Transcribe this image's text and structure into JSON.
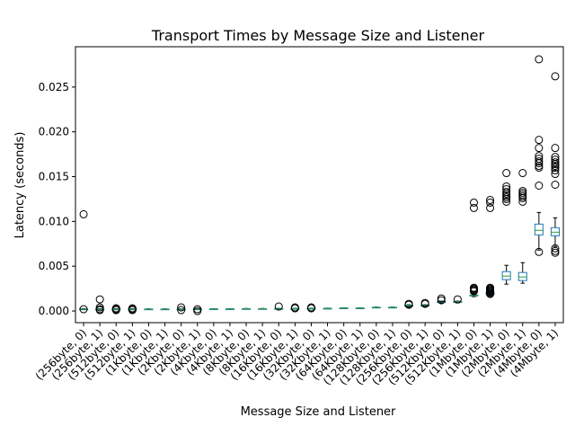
{
  "chart_data": {
    "type": "box",
    "title": "Transport Times by Message Size and Listener",
    "xlabel": "Message Size and Listener",
    "ylabel": "Latency (seconds)",
    "ylim": [
      -0.0013,
      0.0295
    ],
    "yticks": [
      0.0,
      0.005,
      0.01,
      0.015,
      0.02,
      0.025
    ],
    "ytick_labels": [
      "0.000",
      "0.005",
      "0.010",
      "0.015",
      "0.020",
      "0.025"
    ],
    "grid": false,
    "legend": "none",
    "colors": {
      "box": "#1f77b4",
      "median": "#2ca02c",
      "whisker": "#000000",
      "flier": "#000000"
    },
    "categories": [
      "(256byte, 0)",
      "(256byte, 1)",
      "(512byte, 0)",
      "(512byte, 1)",
      "(1Kbyte, 0)",
      "(1Kbyte, 1)",
      "(2Kbyte, 0)",
      "(2Kbyte, 1)",
      "(4Kbyte, 0)",
      "(4Kbyte, 1)",
      "(8Kbyte, 0)",
      "(8Kbyte, 1)",
      "(16Kbyte, 0)",
      "(16Kbyte, 1)",
      "(32Kbyte, 0)",
      "(32Kbyte, 1)",
      "(64Kbyte, 0)",
      "(64Kbyte, 1)",
      "(128Kbyte, 0)",
      "(128Kbyte, 1)",
      "(256Kbyte, 0)",
      "(256Kbyte, 1)",
      "(512Kbyte, 0)",
      "(512Kbyte, 1)",
      "(1Mbyte, 0)",
      "(1Mbyte, 1)",
      "(2Mbyte, 0)",
      "(2Mbyte, 1)",
      "(4Mbyte, 0)",
      "(4Mbyte, 1)"
    ],
    "boxes": [
      {
        "whislo": 0.00015,
        "q1": 0.00018,
        "med": 0.0002,
        "q3": 0.00022,
        "whishi": 0.00026,
        "fliers": [
          0.0108,
          0.0002
        ]
      },
      {
        "whislo": 0.00015,
        "q1": 0.00018,
        "med": 0.0002,
        "q3": 0.00022,
        "whishi": 0.00026,
        "fliers": [
          0.0013,
          0.0004,
          0.0002,
          0.0001
        ]
      },
      {
        "whislo": 0.00015,
        "q1": 0.00018,
        "med": 0.0002,
        "q3": 0.00022,
        "whishi": 0.00026,
        "fliers": [
          0.0003,
          0.0001,
          0.0002
        ]
      },
      {
        "whislo": 0.00015,
        "q1": 0.00018,
        "med": 0.0002,
        "q3": 0.00022,
        "whishi": 0.00026,
        "fliers": [
          0.0003,
          0.0002,
          0.0001
        ]
      },
      {
        "whislo": 0.00018,
        "q1": 0.0002,
        "med": 0.00021,
        "q3": 0.00022,
        "whishi": 0.00024,
        "fliers": []
      },
      {
        "whislo": 0.00018,
        "q1": 0.0002,
        "med": 0.00021,
        "q3": 0.00022,
        "whishi": 0.00024,
        "fliers": []
      },
      {
        "whislo": 0.00018,
        "q1": 0.0002,
        "med": 0.00021,
        "q3": 0.00022,
        "whishi": 0.00024,
        "fliers": [
          0.0004,
          0.0001
        ]
      },
      {
        "whislo": 0.00016,
        "q1": 0.0002,
        "med": 0.00021,
        "q3": 0.00022,
        "whishi": 0.00024,
        "fliers": [
          0.0002,
          0.0
        ]
      },
      {
        "whislo": 0.0002,
        "q1": 0.00022,
        "med": 0.00023,
        "q3": 0.00024,
        "whishi": 0.00026,
        "fliers": []
      },
      {
        "whislo": 0.0002,
        "q1": 0.00022,
        "med": 0.00023,
        "q3": 0.00024,
        "whishi": 0.00026,
        "fliers": []
      },
      {
        "whislo": 0.00022,
        "q1": 0.00024,
        "med": 0.00025,
        "q3": 0.00026,
        "whishi": 0.00028,
        "fliers": []
      },
      {
        "whislo": 0.00022,
        "q1": 0.00024,
        "med": 0.00025,
        "q3": 0.00026,
        "whishi": 0.00028,
        "fliers": []
      },
      {
        "whislo": 0.00024,
        "q1": 0.00026,
        "med": 0.00027,
        "q3": 0.00028,
        "whishi": 0.0003,
        "fliers": [
          0.0005
        ]
      },
      {
        "whislo": 0.00024,
        "q1": 0.00026,
        "med": 0.00027,
        "q3": 0.00028,
        "whishi": 0.0003,
        "fliers": [
          0.0004,
          0.0003
        ]
      },
      {
        "whislo": 0.00026,
        "q1": 0.00028,
        "med": 0.00029,
        "q3": 0.0003,
        "whishi": 0.00032,
        "fliers": [
          0.0004,
          0.0003
        ]
      },
      {
        "whislo": 0.00026,
        "q1": 0.00028,
        "med": 0.00029,
        "q3": 0.0003,
        "whishi": 0.00032,
        "fliers": []
      },
      {
        "whislo": 0.0003,
        "q1": 0.00032,
        "med": 0.00033,
        "q3": 0.00034,
        "whishi": 0.00036,
        "fliers": []
      },
      {
        "whislo": 0.0003,
        "q1": 0.00032,
        "med": 0.00033,
        "q3": 0.00034,
        "whishi": 0.00036,
        "fliers": []
      },
      {
        "whislo": 0.00036,
        "q1": 0.00038,
        "med": 0.0004,
        "q3": 0.00042,
        "whishi": 0.00044,
        "fliers": []
      },
      {
        "whislo": 0.00036,
        "q1": 0.00038,
        "med": 0.0004,
        "q3": 0.00042,
        "whishi": 0.00044,
        "fliers": []
      },
      {
        "whislo": 0.0005,
        "q1": 0.00056,
        "med": 0.0006,
        "q3": 0.00064,
        "whishi": 0.0007,
        "fliers": [
          0.0008,
          0.0007
        ]
      },
      {
        "whislo": 0.0005,
        "q1": 0.00056,
        "med": 0.0006,
        "q3": 0.00064,
        "whishi": 0.0007,
        "fliers": [
          0.0009,
          0.0008
        ]
      },
      {
        "whislo": 0.0009,
        "q1": 0.00096,
        "med": 0.001,
        "q3": 0.00104,
        "whishi": 0.0011,
        "fliers": [
          0.0014,
          0.0012
        ]
      },
      {
        "whislo": 0.0009,
        "q1": 0.00096,
        "med": 0.001,
        "q3": 0.00104,
        "whishi": 0.0011,
        "fliers": [
          0.0013
        ]
      },
      {
        "whislo": 0.0016,
        "q1": 0.00168,
        "med": 0.00172,
        "q3": 0.00178,
        "whishi": 0.0019,
        "fliers": [
          0.0121,
          0.0115,
          0.0026,
          0.0025,
          0.0024,
          0.0023,
          0.0022
        ]
      },
      {
        "whislo": 0.0018,
        "q1": 0.0019,
        "med": 0.002,
        "q3": 0.0021,
        "whishi": 0.0022,
        "fliers": [
          0.0124,
          0.0121,
          0.0115,
          0.0026,
          0.0025,
          0.0024,
          0.0023,
          0.0022,
          0.0021,
          0.002,
          0.0019
        ]
      },
      {
        "whislo": 0.003,
        "q1": 0.0035,
        "med": 0.0039,
        "q3": 0.0044,
        "whishi": 0.0051,
        "fliers": [
          0.0154,
          0.0139,
          0.0136,
          0.0133,
          0.0131,
          0.0129,
          0.0127,
          0.0125,
          0.0122
        ]
      },
      {
        "whislo": 0.0031,
        "q1": 0.0034,
        "med": 0.0038,
        "q3": 0.0043,
        "whishi": 0.0054,
        "fliers": [
          0.0154,
          0.0134,
          0.0132,
          0.013,
          0.0128,
          0.0126,
          0.0122
        ]
      },
      {
        "whislo": 0.0068,
        "q1": 0.0085,
        "med": 0.009,
        "q3": 0.0097,
        "whishi": 0.011,
        "fliers": [
          0.0281,
          0.0191,
          0.0182,
          0.0173,
          0.017,
          0.0167,
          0.0165,
          0.0162,
          0.016,
          0.014,
          0.0066
        ]
      },
      {
        "whislo": 0.0072,
        "q1": 0.0084,
        "med": 0.0088,
        "q3": 0.0093,
        "whishi": 0.0104,
        "fliers": [
          0.0262,
          0.0182,
          0.0172,
          0.0169,
          0.0166,
          0.0164,
          0.0162,
          0.016,
          0.0157,
          0.0153,
          0.0141,
          0.007,
          0.0067,
          0.0065
        ]
      }
    ]
  }
}
